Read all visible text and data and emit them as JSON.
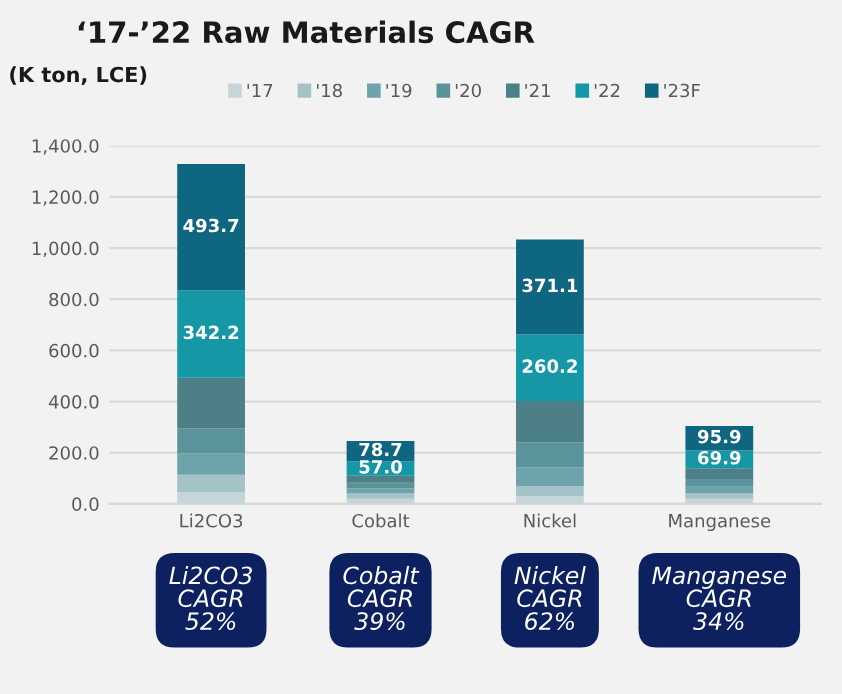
{
  "chart_data": {
    "type": "bar",
    "stacked": true,
    "title": "‘17-’22 Raw Materials CAGR",
    "subtitle": "(K ton, LCE)",
    "categories": [
      "Li2CO3",
      "Cobalt",
      "Nickel",
      "Manganese"
    ],
    "series": [
      {
        "name": "'17",
        "color": "#c5d5d9",
        "values": [
          44,
          20,
          30,
          20
        ]
      },
      {
        "name": "'18",
        "color": "#a3c3c9",
        "values": [
          70,
          20,
          40,
          22
        ]
      },
      {
        "name": "'19",
        "color": "#6ea3ac",
        "values": [
          83,
          20,
          73,
          25
        ]
      },
      {
        "name": "'20",
        "color": "#5b939b",
        "values": [
          99,
          22,
          97,
          30
        ]
      },
      {
        "name": "'21",
        "color": "#4c7f86",
        "values": [
          197,
          28,
          162,
          42
        ]
      },
      {
        "name": "'22",
        "color": "#1597a5",
        "values": [
          342.2,
          57.0,
          260.2,
          69.9
        ],
        "value_labels": [
          "342.2",
          "57.0",
          "260.2",
          "69.9"
        ]
      },
      {
        "name": "'23F",
        "color": "#0f6680",
        "values": [
          493.7,
          78.7,
          371.1,
          95.9
        ],
        "value_labels": [
          "493.7",
          "78.7",
          "371.1",
          "95.9"
        ]
      }
    ],
    "ylim": [
      0,
      1400
    ],
    "yticks": [
      {
        "value": 0,
        "label": "0.0"
      },
      {
        "value": 200,
        "label": "200.0"
      },
      {
        "value": 400,
        "label": "400.0"
      },
      {
        "value": 600,
        "label": "600.0"
      },
      {
        "value": 800,
        "label": "800.0"
      },
      {
        "value": 1000,
        "label": "1,000.0"
      },
      {
        "value": 1200,
        "label": "1,200.0"
      },
      {
        "value": 1400,
        "label": "1,400.0"
      }
    ],
    "grid": "y",
    "legend": "top",
    "annotations": [
      "Li2CO3\nCAGR\n52%",
      "Cobalt\nCAGR\n39%",
      "Nickel\nCAGR\n62%",
      "Manganese\nCAGR\n34%"
    ]
  }
}
